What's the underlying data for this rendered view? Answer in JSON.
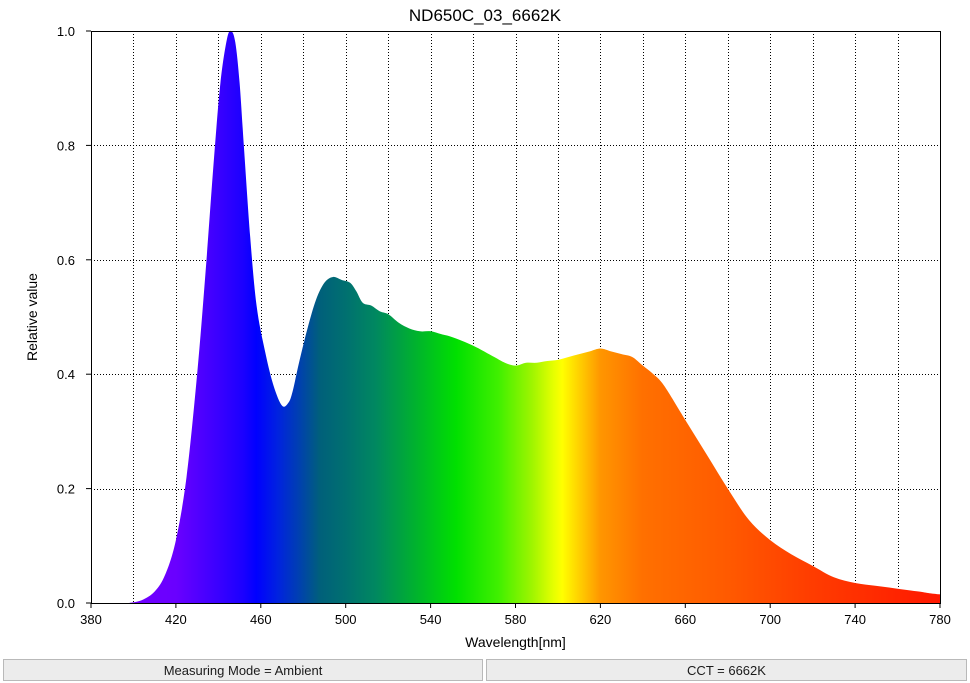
{
  "chart_data": {
    "type": "area",
    "title": "ND650C_03_6662K",
    "xlabel": "Wavelength[nm]",
    "ylabel": "Relative value",
    "xlim": [
      380,
      780
    ],
    "ylim": [
      0,
      1.0
    ],
    "x_ticks": [
      "380",
      "420",
      "460",
      "500",
      "540",
      "580",
      "620",
      "660",
      "700",
      "740",
      "780"
    ],
    "y_ticks": [
      "0.0",
      "0.2",
      "0.4",
      "0.6",
      "0.8",
      "1.0"
    ],
    "grid": true,
    "x": [
      398,
      404,
      410,
      415,
      420,
      425,
      430,
      434,
      438,
      441,
      444,
      446,
      448,
      450,
      452,
      455,
      458,
      462,
      466,
      470,
      473,
      475,
      478,
      482,
      486,
      490,
      494,
      498,
      502,
      505,
      508,
      512,
      516,
      520,
      525,
      530,
      535,
      540,
      545,
      550,
      560,
      570,
      575,
      580,
      585,
      590,
      595,
      600,
      605,
      610,
      615,
      620,
      625,
      630,
      635,
      640,
      645,
      650,
      660,
      670,
      680,
      690,
      700,
      710,
      720,
      730,
      740,
      750,
      760,
      770,
      775,
      780
    ],
    "values": [
      0.0,
      0.005,
      0.02,
      0.05,
      0.11,
      0.22,
      0.4,
      0.58,
      0.78,
      0.91,
      0.985,
      1.0,
      0.98,
      0.91,
      0.8,
      0.64,
      0.52,
      0.44,
      0.38,
      0.345,
      0.35,
      0.37,
      0.42,
      0.48,
      0.53,
      0.56,
      0.57,
      0.565,
      0.56,
      0.545,
      0.525,
      0.52,
      0.51,
      0.505,
      0.49,
      0.48,
      0.475,
      0.475,
      0.47,
      0.465,
      0.45,
      0.43,
      0.42,
      0.415,
      0.42,
      0.42,
      0.423,
      0.425,
      0.43,
      0.435,
      0.44,
      0.445,
      0.44,
      0.435,
      0.43,
      0.415,
      0.4,
      0.38,
      0.32,
      0.26,
      0.2,
      0.145,
      0.11,
      0.085,
      0.065,
      0.045,
      0.035,
      0.03,
      0.025,
      0.02,
      0.017,
      0.015
    ]
  },
  "footer": {
    "measuring_mode": "Measuring Mode = Ambient",
    "cct": "CCT = 6662K"
  }
}
